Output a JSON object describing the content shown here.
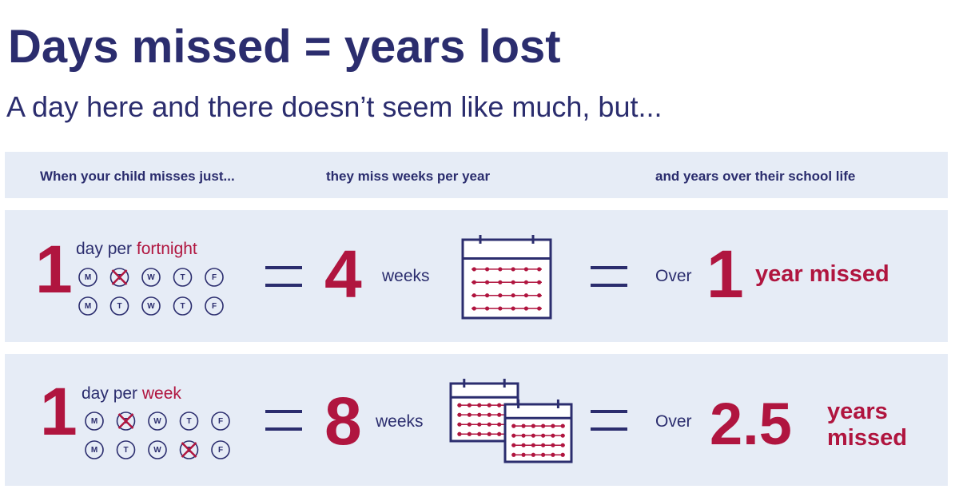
{
  "header": {
    "title": "Days missed = years lost",
    "subtitle": "A day here and there doesn’t seem like much, but..."
  },
  "table": {
    "columns": [
      "When your child misses just...",
      "they miss weeks per year",
      "and years over their school life"
    ],
    "rows": [
      {
        "count": 1,
        "unit_prefix": "day per",
        "unit": "fortnight",
        "days": [
          [
            "M",
            "T",
            "W",
            "T",
            "F"
          ],
          [
            "M",
            "T",
            "W",
            "T",
            "F"
          ]
        ],
        "weeks": 4,
        "weeks_label": "weeks",
        "over": "Over",
        "years": 1,
        "years_label": [
          "year missed"
        ]
      },
      {
        "count": 1,
        "unit_prefix": "day per",
        "unit": "week",
        "days": [
          [
            "M",
            "T",
            "W",
            "T",
            "F"
          ],
          [
            "M",
            "T",
            "W",
            "T",
            "F"
          ]
        ],
        "weeks": 8,
        "weeks_label": "weeks",
        "over": "Over",
        "years": 2.5,
        "years_label": [
          "years",
          "missed"
        ]
      }
    ]
  }
}
